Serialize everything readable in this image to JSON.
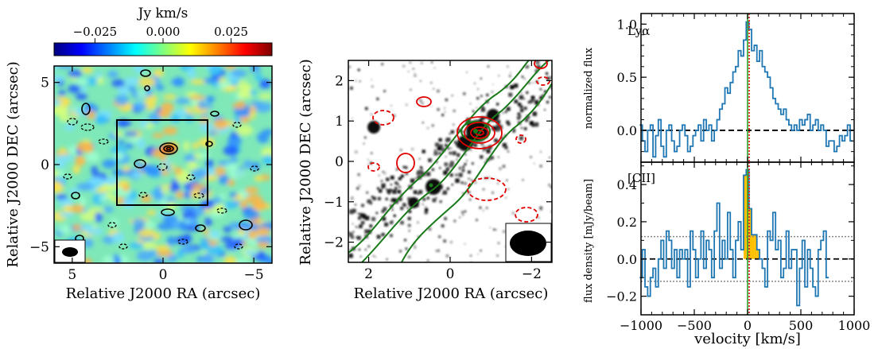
{
  "chart_data": [
    {
      "type": "heatmap",
      "colorbar": {
        "title": "Jy km/s",
        "range": [
          -0.04,
          0.04
        ],
        "ticks": [
          "−0.025",
          "0.000",
          "0.025"
        ],
        "colormap": "jet"
      },
      "xlabel": "Relative J2000 RA (arcsec)",
      "ylabel": "Relative J2000 DEC (arcsec)",
      "xlim": [
        6,
        -6
      ],
      "ylim": [
        -6,
        6
      ],
      "xticks": [
        "5",
        "0",
        "−5"
      ],
      "yticks": [
        "5",
        "0",
        "−5"
      ],
      "box_region": {
        "ra": [
          -2.5,
          2.5
        ],
        "dec": [
          -2.5,
          2.5
        ]
      }
    },
    {
      "type": "heatmap",
      "xlabel": "Relative J2000 RA (arcsec)",
      "ylabel": "Relative J2000 DEC (arcsec)",
      "xlim": [
        2.5,
        -2.5
      ],
      "ylim": [
        -2.5,
        2.5
      ],
      "xticks": [
        "2",
        "0",
        "−2"
      ],
      "yticks": [
        "2",
        "1",
        "0",
        "−1",
        "−2"
      ],
      "contour_colors": [
        "#e00000",
        "#1a7a1a"
      ]
    },
    {
      "type": "line",
      "label": "Lyα",
      "ylabel": "normalized flux",
      "xlim": [
        -1000,
        1000
      ],
      "ylim": [
        -0.3,
        1.1
      ],
      "yticks": [
        "0.0",
        "0.5",
        "1.0"
      ],
      "x": [
        -1000,
        -975,
        -950,
        -925,
        -900,
        -875,
        -850,
        -825,
        -800,
        -775,
        -750,
        -725,
        -700,
        -675,
        -650,
        -625,
        -600,
        -575,
        -550,
        -525,
        -500,
        -475,
        -450,
        -425,
        -400,
        -375,
        -350,
        -325,
        -300,
        -275,
        -250,
        -225,
        -200,
        -175,
        -150,
        -125,
        -100,
        -75,
        -50,
        -25,
        0,
        25,
        50,
        75,
        100,
        125,
        150,
        175,
        200,
        225,
        250,
        275,
        300,
        325,
        350,
        375,
        400,
        425,
        450,
        475,
        500,
        525,
        550,
        575,
        600,
        625,
        650,
        675,
        700,
        725,
        750,
        775,
        800,
        825,
        850,
        875,
        900,
        925,
        950,
        975
      ],
      "y": [
        0.05,
        -0.1,
        -0.2,
        0.0,
        0.05,
        -0.25,
        -0.05,
        0.1,
        -0.15,
        -0.25,
        0.0,
        0.05,
        -0.1,
        -0.2,
        -0.15,
        0.0,
        0.05,
        -0.05,
        -0.2,
        -0.15,
        -0.05,
        0.0,
        0.05,
        -0.1,
        0.1,
        0.0,
        0.05,
        -0.1,
        0.0,
        0.1,
        0.2,
        0.25,
        0.4,
        0.35,
        0.45,
        0.55,
        0.6,
        0.75,
        0.7,
        0.85,
        1.02,
        0.95,
        0.75,
        0.8,
        0.65,
        0.75,
        0.6,
        0.55,
        0.5,
        0.4,
        0.3,
        0.25,
        0.2,
        0.15,
        0.2,
        0.1,
        0.05,
        0.0,
        0.05,
        0.0,
        0.1,
        0.05,
        0.1,
        0.15,
        0.0,
        0.05,
        0.1,
        0.0,
        0.05,
        0.0,
        -0.15,
        -0.1,
        -0.1,
        -0.2,
        -0.15,
        -0.05,
        -0.1,
        -0.05,
        0.05,
        -0.1
      ],
      "reference_lines": {
        "zero": 0.0,
        "green_vertical": 0,
        "red_vertical": 15
      }
    },
    {
      "type": "line",
      "label": "[CII]",
      "xlabel": "velocity [km/s]",
      "ylabel": "flux density [mJy/beam]",
      "xlim": [
        -1000,
        1000
      ],
      "ylim": [
        -0.3,
        0.52
      ],
      "xticks": [
        "−1000",
        "−500",
        "0",
        "500",
        "1000"
      ],
      "yticks": [
        "−0.2",
        "0.0",
        "0.2",
        "0.4"
      ],
      "x": [
        -1000,
        -975,
        -950,
        -925,
        -900,
        -875,
        -850,
        -825,
        -800,
        -775,
        -750,
        -725,
        -700,
        -675,
        -650,
        -625,
        -600,
        -575,
        -550,
        -525,
        -500,
        -475,
        -450,
        -425,
        -400,
        -375,
        -350,
        -325,
        -300,
        -275,
        -250,
        -225,
        -200,
        -175,
        -150,
        -125,
        -100,
        -75,
        -50,
        -25,
        0,
        25,
        50,
        75,
        100,
        125,
        150,
        175,
        200,
        225,
        250,
        275,
        300,
        325,
        350,
        375,
        400,
        425,
        450,
        475,
        500,
        525,
        550,
        575,
        600,
        625,
        650,
        675,
        700,
        725,
        750
      ],
      "y": [
        -0.1,
        0.05,
        -0.15,
        -0.2,
        -0.1,
        -0.05,
        -0.15,
        0.0,
        0.1,
        -0.05,
        0.15,
        0.1,
        -0.05,
        0.05,
        -0.1,
        0.05,
        0.0,
        0.05,
        -0.15,
        0.15,
        0.05,
        -0.1,
        0.0,
        0.15,
        -0.05,
        0.1,
        0.05,
        -0.1,
        0.15,
        0.3,
        -0.05,
        0.1,
        0.0,
        0.25,
        0.05,
        -0.1,
        0.1,
        0.2,
        0.05,
        0.45,
        0.48,
        0.27,
        0.13,
        0.13,
        0.05,
        0.0,
        -0.05,
        -0.15,
        0.15,
        0.1,
        0.25,
        0.05,
        0.1,
        -0.1,
        -0.05,
        0.15,
        -0.05,
        0.05,
        0.05,
        -0.25,
        -0.05,
        0.1,
        -0.15,
        0.05,
        -0.05,
        -0.15,
        -0.2,
        0.05,
        0.1,
        0.15,
        -0.1
      ],
      "highlighted_range": [
        -25,
        150
      ],
      "noise_level": 0.12,
      "reference_lines": {
        "zero": 0.0,
        "green_vertical": 0,
        "red_vertical": 15
      }
    }
  ]
}
